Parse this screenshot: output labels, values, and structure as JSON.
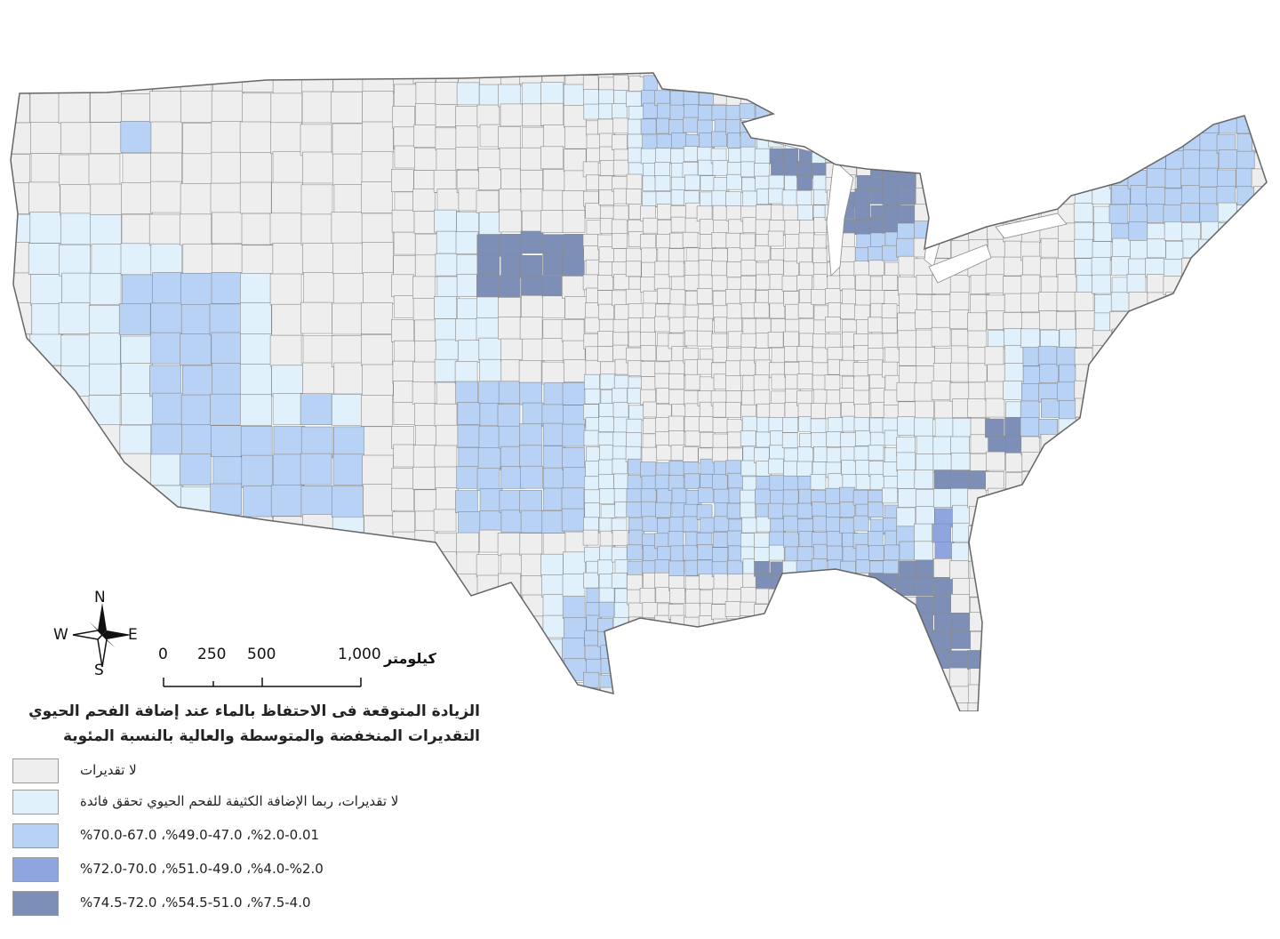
{
  "map": {
    "colors": {
      "no_estimate": "#eeeeee",
      "may_benefit": "#e1f1fb",
      "low": "#b7d2f4",
      "medium": "#8fa5e0",
      "high": "#7d8fb6",
      "border": "#8a8a8a"
    },
    "compass": {
      "north": "N",
      "south": "S",
      "east": "E",
      "west": "W"
    },
    "scale_bar": {
      "ticks": [
        "0",
        "250",
        "500",
        "1,000"
      ],
      "unit": "كيلومتر"
    }
  },
  "legend": {
    "title_line1": "الزيادة المتوقعة فى الاحتفاظ بالماء عند إضافة الفحم الحيوي",
    "title_line2": "التقديرات المنخفضة والمتوسطة والعالية بالنسبة المئوية",
    "items": [
      {
        "label": "لا تقديرات",
        "color": "#eeeeee"
      },
      {
        "label": "لا تقديرات، ربما الإضافة الكثيفة للفحم الحيوي تحقق فائدة",
        "color": "#e1f1fb"
      },
      {
        "label": "%70.0-67.0 ،%49.0-47.0 ،%2.0-0.01",
        "color": "#b7d2f4"
      },
      {
        "label": "%72.0-70.0 ،%51.0-49.0 ،%4.0-%2.0",
        "color": "#8fa5e0"
      },
      {
        "label": "%74.5-72.0 ،%54.5-51.0 ،%7.5-4.0",
        "color": "#7d8fb6"
      }
    ]
  }
}
